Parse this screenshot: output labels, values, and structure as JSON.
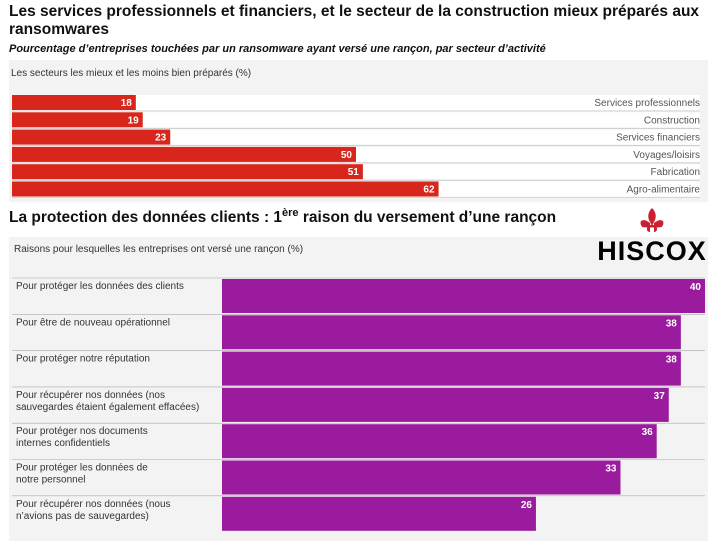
{
  "header": {
    "title": "Les services professionnels et financiers, et le secteur de la construction mieux préparés aux ransomwares",
    "subtitle": "Pourcentage d’entreprises touchées par un ransomware ayant versé une rançon, par secteur d’activité"
  },
  "section2": {
    "title_main": "La protection des données clients : 1",
    "title_sup": "ère",
    "title_rest": " raison du versement d’une rançon"
  },
  "logo": {
    "text": "HISCOX",
    "color": "#cc1f2f"
  },
  "chart_data": [
    {
      "type": "bar",
      "orientation": "horizontal",
      "subtitle": "Les secteurs les mieux et les moins bien préparés (%)",
      "categories": [
        "Services professionnels",
        "Construction",
        "Services financiers",
        "Voyages/loisirs",
        "Fabrication",
        "Agro-alimentaire"
      ],
      "values": [
        18,
        19,
        23,
        50,
        51,
        62
      ],
      "xlim": [
        0,
        100
      ],
      "color": "#d9261c",
      "data_labels": true,
      "grid": false
    },
    {
      "type": "bar",
      "orientation": "horizontal",
      "subtitle": "Raisons pour lesquelles les entreprises ont versé une rançon (%)",
      "categories": [
        [
          "Pour protéger les données des clients"
        ],
        [
          "Pour être de nouveau opérationnel"
        ],
        [
          "Pour protéger notre réputation"
        ],
        [
          "Pour récupérer nos données (nos",
          "sauvegardes étaient également effacées)"
        ],
        [
          "Pour protéger nos documents",
          "internes confidentiels"
        ],
        [
          "Pour protéger les données de",
          "notre personnel"
        ],
        [
          "Pour récupérer nos données (nous",
          "n’avions pas de sauvegardes)"
        ]
      ],
      "values": [
        40,
        38,
        38,
        37,
        36,
        33,
        26
      ],
      "xlim": [
        0,
        40
      ],
      "color": "#9b1b9e",
      "data_labels": true,
      "grid": false
    }
  ]
}
